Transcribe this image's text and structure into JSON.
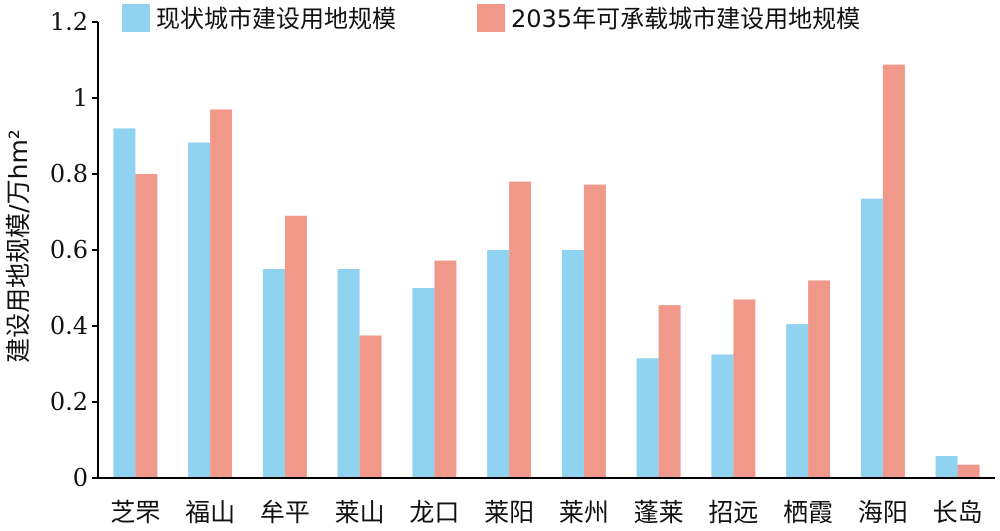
{
  "chart_data": {
    "type": "bar",
    "title": "",
    "xlabel": "",
    "ylabel": "建设用地规模/万hm²",
    "ylim": [
      0,
      1.2
    ],
    "yticks": [
      0,
      0.2,
      0.4,
      0.6,
      0.8,
      1,
      1.2
    ],
    "ytick_labels": [
      "0",
      "0.2",
      "0.4",
      "0.6",
      "0.8",
      "1",
      "1.2"
    ],
    "grid": false,
    "legend_position": "top",
    "categories": [
      "芝罘",
      "福山",
      "牟平",
      "莱山",
      "龙口",
      "莱阳",
      "莱州",
      "蓬莱",
      "招远",
      "栖霞",
      "海阳",
      "长岛"
    ],
    "series": [
      {
        "name": "现状城市建设用地规模",
        "color": "#8fd3f1",
        "values": [
          0.92,
          0.883,
          0.55,
          0.55,
          0.5,
          0.6,
          0.6,
          0.315,
          0.325,
          0.405,
          0.735,
          0.058
        ]
      },
      {
        "name": "2035年可承载城市建设用地规模",
        "color": "#f0998a",
        "values": [
          0.8,
          0.97,
          0.69,
          0.375,
          0.572,
          0.78,
          0.772,
          0.455,
          0.47,
          0.52,
          1.088,
          0.035
        ]
      }
    ]
  }
}
